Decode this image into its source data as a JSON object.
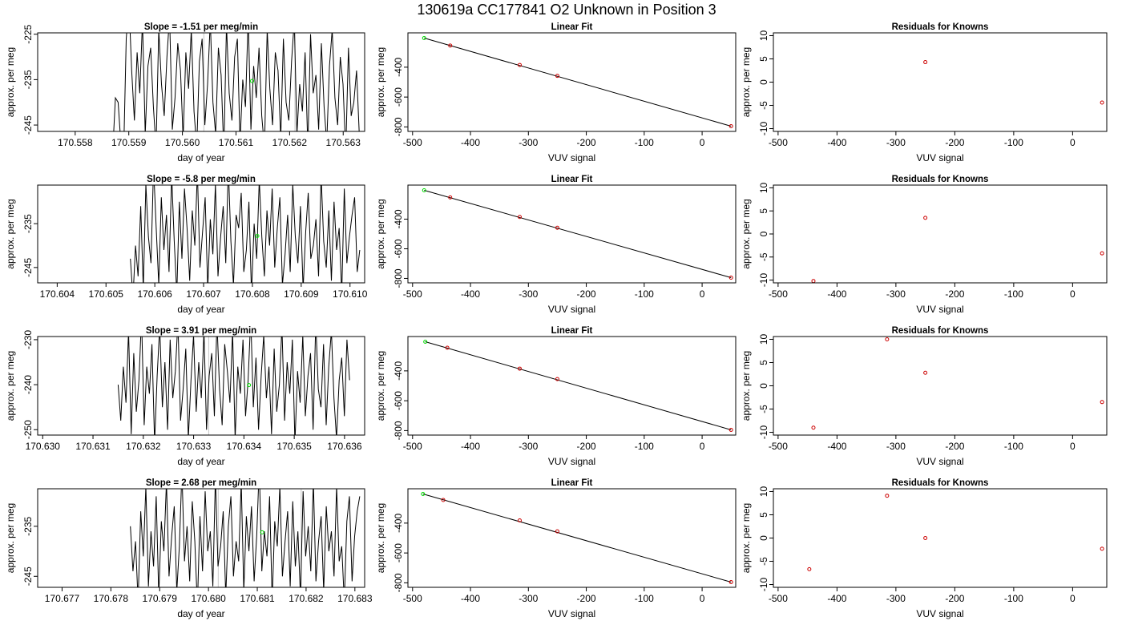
{
  "figure_title": "130619a     CC177841   O2 Unknown in Position  3",
  "colors": {
    "signal": "#000000",
    "highlight": "#00dd00",
    "known": "#cc0000",
    "vline": "#c8c8c8"
  },
  "chart_data": [
    {
      "row": 1,
      "type": "line",
      "title": "Slope =  -1.51  per meg/min",
      "xlabel": "day of year",
      "ylabel": "approx. per meg",
      "xlim": [
        170.5573,
        170.5634
      ],
      "ylim": [
        -246.4,
        -224.7
      ],
      "xticks": [
        170.558,
        170.559,
        170.56,
        170.561,
        170.562,
        170.563
      ],
      "xtick_labels": [
        "170.558",
        "170.559",
        "170.560",
        "170.561",
        "170.562",
        "170.563"
      ],
      "yticks": [
        -225,
        -235,
        -245
      ],
      "ytick_labels": [
        "-225",
        "-235",
        "-245"
      ],
      "vlines": [
        170.5604,
        170.5621
      ],
      "series_x_range": [
        170.5587,
        170.5633
      ],
      "series_y": [
        -251,
        -239,
        -240,
        -249,
        -252,
        -226,
        -218,
        -233,
        -244,
        -229,
        -238,
        -222,
        -247,
        -232,
        -228,
        -241,
        -250,
        -224,
        -236,
        -243,
        -230,
        -221,
        -246,
        -239,
        -227,
        -233,
        -248,
        -229,
        -237,
        -224,
        -242,
        -250,
        -231,
        -226,
        -245,
        -236,
        -222,
        -240,
        -247,
        -228,
        -234,
        -251,
        -223,
        -238,
        -244,
        -230,
        -226,
        -249,
        -235,
        -241,
        -221,
        -246,
        -232,
        -239,
        -228,
        -243,
        -250,
        -224,
        -237,
        -245,
        -229,
        -233,
        -248,
        -226,
        -240,
        -244,
        -231,
        -222,
        -247,
        -236,
        -242,
        -229,
        -250,
        -225,
        -238,
        -234,
        -246,
        -227,
        -241,
        -249,
        -232,
        -224,
        -239,
        -245,
        -230,
        -236,
        -251,
        -228,
        -243,
        -240,
        -233,
        -247
      ],
      "highlight_point": {
        "x": 170.5613,
        "y": -235.3
      }
    },
    {
      "row": 1,
      "type": "scatter",
      "title": "Linear Fit",
      "xlabel": "VUV signal",
      "ylabel": "approx. per meg",
      "xlim": [
        -508,
        58
      ],
      "ylim": [
        -830,
        -170
      ],
      "xticks": [
        -500,
        -400,
        -300,
        -200,
        -100,
        0
      ],
      "yticks": [
        -400,
        -600,
        -800
      ],
      "fit_line": [
        [
          -480,
          -205
        ],
        [
          50,
          -795
        ]
      ],
      "knowns": [
        {
          "x": -435,
          "y": -255
        },
        {
          "x": -315,
          "y": -385
        },
        {
          "x": -250,
          "y": -458
        },
        {
          "x": 50,
          "y": -795
        }
      ],
      "highlight_point": {
        "x": -480,
        "y": -205
      }
    },
    {
      "row": 1,
      "type": "scatter",
      "title": "Residuals for Knowns",
      "xlabel": "VUV signal",
      "ylabel": "approx. per meg",
      "xlim": [
        -508,
        58
      ],
      "ylim": [
        -10.6,
        10.6
      ],
      "xticks": [
        -500,
        -400,
        -300,
        -200,
        -100,
        0
      ],
      "yticks": [
        10,
        5,
        0,
        -5,
        -10
      ],
      "knowns": [
        {
          "x": -250,
          "y": 4.3
        },
        {
          "x": 50,
          "y": -4.4
        }
      ]
    },
    {
      "row": 2,
      "type": "line",
      "title": "Slope =  -5.8  per meg/min",
      "xlabel": "day of year",
      "ylabel": "approx. per meg",
      "xlim": [
        170.6036,
        170.6103
      ],
      "ylim": [
        -248.5,
        -226.2
      ],
      "xticks": [
        170.604,
        170.605,
        170.606,
        170.607,
        170.608,
        170.609,
        170.61
      ],
      "xtick_labels": [
        "170.604",
        "170.605",
        "170.606",
        "170.607",
        "170.608",
        "170.609",
        "170.610"
      ],
      "yticks": [
        -235,
        -245
      ],
      "ytick_labels": [
        "-235",
        "-245"
      ],
      "vlines": [],
      "series_x_range": [
        170.6055,
        170.6102
      ],
      "series_y": [
        -243,
        -252,
        -240,
        -247,
        -231,
        -250,
        -226,
        -238,
        -244,
        -222,
        -236,
        -249,
        -229,
        -241,
        -233,
        -246,
        -224,
        -239,
        -251,
        -230,
        -243,
        -227,
        -236,
        -248,
        -232,
        -240,
        -223,
        -245,
        -237,
        -229,
        -250,
        -234,
        -242,
        -226,
        -247,
        -238,
        -231,
        -244,
        -222,
        -239,
        -249,
        -233,
        -236,
        -228,
        -246,
        -241,
        -230,
        -251,
        -235,
        -243,
        -225,
        -238,
        -247,
        -232,
        -240,
        -227,
        -245,
        -236,
        -229,
        -249,
        -242,
        -233,
        -246,
        -226,
        -238,
        -244,
        -231,
        -250,
        -237,
        -228,
        -243,
        -240,
        -234,
        -247,
        -224,
        -239,
        -245,
        -232,
        -248,
        -230,
        -241,
        -236,
        -251,
        -227,
        -244,
        -238,
        -233,
        -229,
        -246,
        -241
      ],
      "highlight_point": {
        "x": 170.6081,
        "y": -237.8
      }
    },
    {
      "row": 2,
      "type": "scatter",
      "title": "Linear Fit",
      "xlabel": "VUV signal",
      "ylabel": "approx. per meg",
      "xlim": [
        -508,
        58
      ],
      "ylim": [
        -830,
        -170
      ],
      "xticks": [
        -500,
        -400,
        -300,
        -200,
        -100,
        0
      ],
      "yticks": [
        -400,
        -600,
        -800
      ],
      "fit_line": [
        [
          -480,
          -205
        ],
        [
          50,
          -795
        ]
      ],
      "knowns": [
        {
          "x": -435,
          "y": -253
        },
        {
          "x": -315,
          "y": -385
        },
        {
          "x": -250,
          "y": -458
        },
        {
          "x": 50,
          "y": -795
        }
      ],
      "highlight_point": {
        "x": -480,
        "y": -205
      }
    },
    {
      "row": 2,
      "type": "scatter",
      "title": "Residuals for Knowns",
      "xlabel": "VUV signal",
      "ylabel": "approx. per meg",
      "xlim": [
        -508,
        58
      ],
      "ylim": [
        -10.6,
        10.6
      ],
      "xticks": [
        -500,
        -400,
        -300,
        -200,
        -100,
        0
      ],
      "yticks": [
        10,
        5,
        0,
        -5,
        -10
      ],
      "knowns": [
        {
          "x": -440,
          "y": -10.2
        },
        {
          "x": -250,
          "y": 3.5
        },
        {
          "x": 50,
          "y": -4.2
        }
      ]
    },
    {
      "row": 3,
      "type": "line",
      "title": "Slope =  3.91  per meg/min",
      "xlabel": "day of year",
      "ylabel": "approx. per meg",
      "xlim": [
        170.6299,
        170.6364
      ],
      "ylim": [
        -251.2,
        -229.3
      ],
      "xticks": [
        170.63,
        170.631,
        170.632,
        170.633,
        170.634,
        170.635,
        170.636
      ],
      "xtick_labels": [
        "170.630",
        "170.631",
        "170.632",
        "170.633",
        "170.634",
        "170.635",
        "170.636"
      ],
      "yticks": [
        -230,
        -240,
        -250
      ],
      "ytick_labels": [
        "-230",
        "-240",
        "-250"
      ],
      "vlines": [
        170.6333
      ],
      "series_x_range": [
        170.6315,
        170.6361
      ],
      "series_y": [
        -240,
        -248,
        -236,
        -244,
        -228,
        -251,
        -233,
        -246,
        -239,
        -225,
        -249,
        -236,
        -242,
        -231,
        -253,
        -238,
        -227,
        -245,
        -235,
        -250,
        -230,
        -243,
        -237,
        -226,
        -248,
        -241,
        -232,
        -252,
        -239,
        -229,
        -246,
        -235,
        -243,
        -228,
        -250,
        -238,
        -233,
        -247,
        -226,
        -241,
        -249,
        -231,
        -237,
        -244,
        -228,
        -252,
        -236,
        -242,
        -230,
        -247,
        -239,
        -225,
        -245,
        -234,
        -250,
        -238,
        -229,
        -243,
        -236,
        -251,
        -232,
        -246,
        -240,
        -227,
        -248,
        -235,
        -242,
        -230,
        -253,
        -237,
        -244,
        -229,
        -247,
        -238,
        -233,
        -250,
        -226,
        -241,
        -245,
        -231,
        -249,
        -236,
        -228,
        -243,
        -252,
        -239,
        -234,
        -247,
        -230,
        -239
      ],
      "highlight_point": {
        "x": 170.6341,
        "y": -240.1
      }
    },
    {
      "row": 3,
      "type": "scatter",
      "title": "Linear Fit",
      "xlabel": "VUV signal",
      "ylabel": "approx. per meg",
      "xlim": [
        -508,
        58
      ],
      "ylim": [
        -830,
        -170
      ],
      "xticks": [
        -500,
        -400,
        -300,
        -200,
        -100,
        0
      ],
      "yticks": [
        -400,
        -600,
        -800
      ],
      "fit_line": [
        [
          -478,
          -205
        ],
        [
          50,
          -795
        ]
      ],
      "knowns": [
        {
          "x": -440,
          "y": -245
        },
        {
          "x": -315,
          "y": -385
        },
        {
          "x": -250,
          "y": -455
        },
        {
          "x": 50,
          "y": -795
        }
      ],
      "highlight_point": {
        "x": -478,
        "y": -205
      }
    },
    {
      "row": 3,
      "type": "scatter",
      "title": "Residuals for Knowns",
      "xlabel": "VUV signal",
      "ylabel": "approx. per meg",
      "xlim": [
        -508,
        58
      ],
      "ylim": [
        -10.6,
        10.6
      ],
      "xticks": [
        -500,
        -400,
        -300,
        -200,
        -100,
        0
      ],
      "yticks": [
        10,
        5,
        0,
        -5,
        -10
      ],
      "knowns": [
        {
          "x": -440,
          "y": -9.0
        },
        {
          "x": -315,
          "y": 10.0
        },
        {
          "x": -250,
          "y": 2.8
        },
        {
          "x": 50,
          "y": -3.5
        }
      ]
    },
    {
      "row": 4,
      "type": "line",
      "title": "Slope =  2.68  per meg/min",
      "xlabel": "day of year",
      "ylabel": "approx. per meg",
      "xlim": [
        170.6765,
        170.6832
      ],
      "ylim": [
        -247.2,
        -227.5
      ],
      "xticks": [
        170.677,
        170.678,
        170.679,
        170.68,
        170.681,
        170.682,
        170.683
      ],
      "xtick_labels": [
        "170.677",
        "170.678",
        "170.679",
        "170.680",
        "170.681",
        "170.682",
        "170.683"
      ],
      "yticks": [
        -235,
        -245
      ],
      "ytick_labels": [
        "-235",
        "-245"
      ],
      "vlines": [
        170.6802,
        170.6819
      ],
      "series_x_range": [
        170.6784,
        170.6831
      ],
      "series_y": [
        -235,
        -244,
        -238,
        -250,
        -232,
        -241,
        -227,
        -247,
        -236,
        -243,
        -229,
        -249,
        -234,
        -240,
        -226,
        -245,
        -237,
        -231,
        -248,
        -239,
        -224,
        -242,
        -235,
        -246,
        -230,
        -238,
        -251,
        -233,
        -244,
        -228,
        -240,
        -236,
        -247,
        -225,
        -243,
        -239,
        -232,
        -249,
        -235,
        -229,
        -245,
        -238,
        -242,
        -226,
        -248,
        -233,
        -240,
        -231,
        -246,
        -237,
        -223,
        -244,
        -236,
        -241,
        -229,
        -250,
        -234,
        -239,
        -227,
        -245,
        -238,
        -232,
        -247,
        -230,
        -243,
        -236,
        -249,
        -228,
        -241,
        -235,
        -244,
        -226,
        -246,
        -238,
        -233,
        -248,
        -231,
        -240,
        -236,
        -245,
        -227,
        -242,
        -239,
        -250,
        -234,
        -229,
        -246,
        -237,
        -232,
        -229
      ],
      "highlight_point": {
        "x": 170.6811,
        "y": -236.2
      }
    },
    {
      "row": 4,
      "type": "scatter",
      "title": "Linear Fit",
      "xlabel": "VUV signal",
      "ylabel": "approx. per meg",
      "xlim": [
        -508,
        58
      ],
      "ylim": [
        -830,
        -170
      ],
      "xticks": [
        -500,
        -400,
        -300,
        -200,
        -100,
        0
      ],
      "yticks": [
        -400,
        -600,
        -800
      ],
      "fit_line": [
        [
          -482,
          -205
        ],
        [
          50,
          -795
        ]
      ],
      "knowns": [
        {
          "x": -447,
          "y": -245
        },
        {
          "x": -315,
          "y": -382
        },
        {
          "x": -250,
          "y": -455
        },
        {
          "x": 50,
          "y": -795
        }
      ],
      "highlight_point": {
        "x": -482,
        "y": -205
      }
    },
    {
      "row": 4,
      "type": "scatter",
      "title": "Residuals for Knowns",
      "xlabel": "VUV signal",
      "ylabel": "approx. per meg",
      "xlim": [
        -508,
        58
      ],
      "ylim": [
        -10.6,
        10.6
      ],
      "xticks": [
        -500,
        -400,
        -300,
        -200,
        -100,
        0
      ],
      "yticks": [
        10,
        5,
        0,
        -5,
        -10
      ],
      "knowns": [
        {
          "x": -447,
          "y": -6.7
        },
        {
          "x": -315,
          "y": 9.1
        },
        {
          "x": -250,
          "y": 0.0
        },
        {
          "x": 50,
          "y": -2.3
        }
      ]
    }
  ]
}
